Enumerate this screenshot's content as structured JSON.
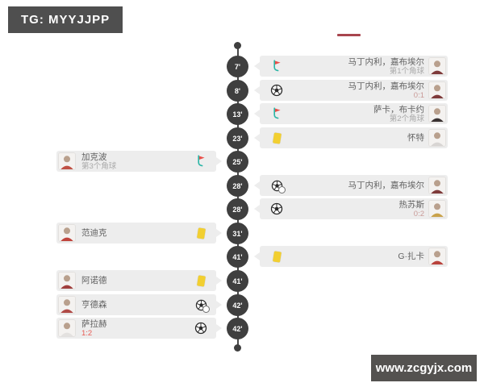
{
  "header": {
    "badge_label": "TG: MYYJJPP"
  },
  "decor": {
    "top_line_color": "#a8454e"
  },
  "watermark": {
    "text": "www.zcgyjx.com"
  },
  "colors": {
    "timeline_dark": "#3f3f3f",
    "row_bg": "#ededed",
    "yellow_card": "#f2cf30",
    "corner_flag_red": "#e8504a",
    "corner_pole_teal": "#2ab5a5",
    "goal_score_home": "#e85c55",
    "goal_score_away": "#c99a97",
    "muted_text": "#a9a9a9",
    "name_text": "#636363",
    "badge_bg": "#4f4f4f",
    "watermark_bg": "#545250"
  },
  "timeline": {
    "events": [
      {
        "minute": "7'",
        "side": "right",
        "icon": "corner",
        "name": "马丁内利，嘉布埃尔",
        "detail": "第1个角球",
        "detail_style": "muted",
        "shirt": "#7e3a3a"
      },
      {
        "minute": "8'",
        "side": "right",
        "icon": "goal",
        "name": "马丁内利，嘉布埃尔",
        "detail": "0:1",
        "detail_style": "score-soft",
        "shirt": "#7e3a3a"
      },
      {
        "minute": "13'",
        "side": "right",
        "icon": "corner",
        "name": "萨卡，布卡约",
        "detail": "第2个角球",
        "detail_style": "muted",
        "shirt": "#3a3232"
      },
      {
        "minute": "23'",
        "side": "right",
        "icon": "yellow-card",
        "name": "怀特",
        "detail": "",
        "detail_style": "",
        "shirt": "#d8d5d3"
      },
      {
        "minute": "25'",
        "side": "left",
        "icon": "corner",
        "name": "加克波",
        "detail": "第3个角球",
        "detail_style": "muted",
        "shirt": "#c05044"
      },
      {
        "minute": "28'",
        "side": "right",
        "icon": "assist",
        "name": "马丁内利，嘉布埃尔",
        "detail": "",
        "detail_style": "",
        "shirt": "#7e3a3a"
      },
      {
        "minute": "28'",
        "side": "right",
        "icon": "goal",
        "name": "热苏斯",
        "detail": "0:2",
        "detail_style": "score-soft",
        "shirt": "#c9a24a"
      },
      {
        "minute": "31'",
        "side": "left",
        "icon": "yellow-card",
        "name": "范迪克",
        "detail": "",
        "detail_style": "",
        "shirt": "#c0443c"
      },
      {
        "minute": "41'",
        "side": "right",
        "icon": "yellow-card",
        "name": "G·扎卡",
        "detail": "",
        "detail_style": "",
        "shirt": "#b9423c"
      },
      {
        "minute": "41'",
        "side": "left",
        "icon": "yellow-card",
        "name": "阿诺德",
        "detail": "",
        "detail_style": "",
        "shirt": "#a03e3c"
      },
      {
        "minute": "42'",
        "side": "left",
        "icon": "assist",
        "name": "亨德森",
        "detail": "",
        "detail_style": "",
        "shirt": "#b04a46"
      },
      {
        "minute": "42'",
        "side": "left",
        "icon": "goal",
        "name": "萨拉赫",
        "detail": "1:2",
        "detail_style": "score",
        "shirt": "#e3e1df"
      }
    ]
  }
}
